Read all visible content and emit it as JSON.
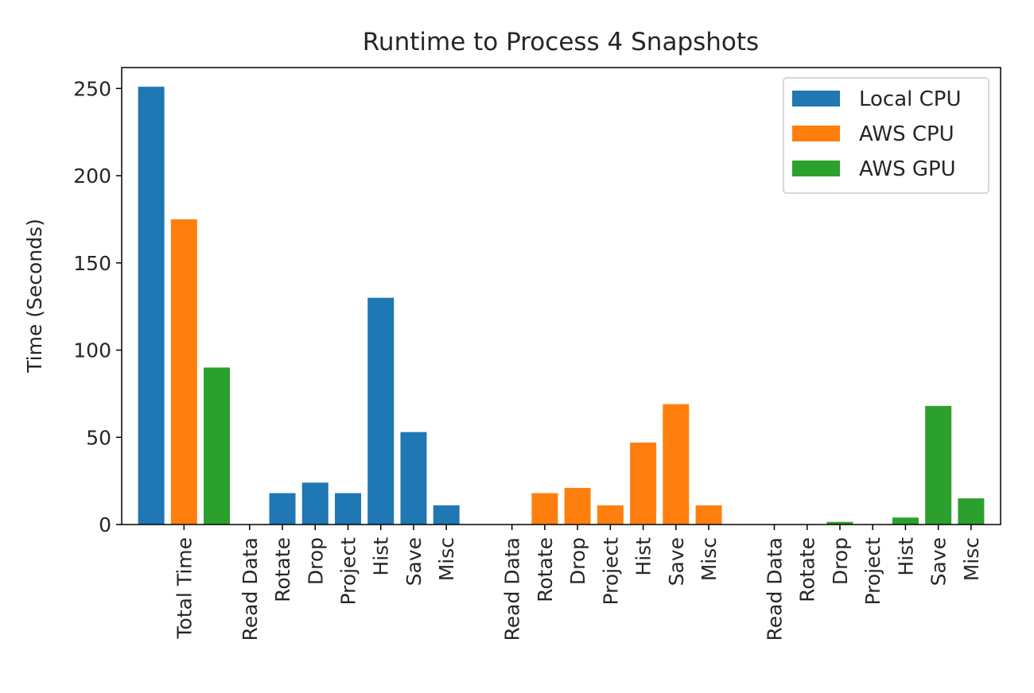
{
  "chart_data": {
    "type": "bar",
    "title": "Runtime to Process 4 Snapshots",
    "xlabel": "",
    "ylabel": "Time (Seconds)",
    "ylim": [
      0,
      262
    ],
    "yticks": [
      0,
      50,
      100,
      150,
      200,
      250
    ],
    "grid": false,
    "legend_position": "top-right",
    "series": [
      {
        "name": "Local CPU",
        "color": "#1f77b4",
        "x": [
          1,
          4,
          5,
          6,
          7,
          8,
          9,
          10
        ],
        "categories": [
          "Total Time",
          "Read Data",
          "Rotate",
          "Drop",
          "Project",
          "Hist",
          "Save",
          "Misc"
        ],
        "values": [
          251,
          0,
          18,
          24,
          18,
          130,
          53,
          11
        ]
      },
      {
        "name": "AWS CPU",
        "color": "#ff7f0e",
        "x": [
          2,
          12,
          13,
          14,
          15,
          16,
          17,
          18
        ],
        "categories": [
          "Total Time",
          "Read Data",
          "Rotate",
          "Drop",
          "Project",
          "Hist",
          "Save",
          "Misc"
        ],
        "values": [
          175,
          0,
          18,
          21,
          11,
          47,
          69,
          11
        ]
      },
      {
        "name": "AWS GPU",
        "color": "#2ca02c",
        "x": [
          3,
          20,
          21,
          22,
          23,
          24,
          25,
          26
        ],
        "categories": [
          "Total Time",
          "Read Data",
          "Rotate",
          "Drop",
          "Project",
          "Hist",
          "Save",
          "Misc"
        ],
        "values": [
          90,
          0,
          0,
          1.5,
          0,
          4,
          68,
          15
        ]
      }
    ],
    "xticks": [
      {
        "x": 2,
        "label": "Total Time"
      },
      {
        "x": 4,
        "label": "Read Data"
      },
      {
        "x": 5,
        "label": "Rotate"
      },
      {
        "x": 6,
        "label": "Drop"
      },
      {
        "x": 7,
        "label": "Project"
      },
      {
        "x": 8,
        "label": "Hist"
      },
      {
        "x": 9,
        "label": "Save"
      },
      {
        "x": 10,
        "label": "Misc"
      },
      {
        "x": 12,
        "label": "Read Data"
      },
      {
        "x": 13,
        "label": "Rotate"
      },
      {
        "x": 14,
        "label": "Drop"
      },
      {
        "x": 15,
        "label": "Project"
      },
      {
        "x": 16,
        "label": "Hist"
      },
      {
        "x": 17,
        "label": "Save"
      },
      {
        "x": 18,
        "label": "Misc"
      },
      {
        "x": 20,
        "label": "Read Data"
      },
      {
        "x": 21,
        "label": "Rotate"
      },
      {
        "x": 22,
        "label": "Drop"
      },
      {
        "x": 23,
        "label": "Project"
      },
      {
        "x": 24,
        "label": "Hist"
      },
      {
        "x": 25,
        "label": "Save"
      },
      {
        "x": 26,
        "label": "Misc"
      }
    ]
  }
}
